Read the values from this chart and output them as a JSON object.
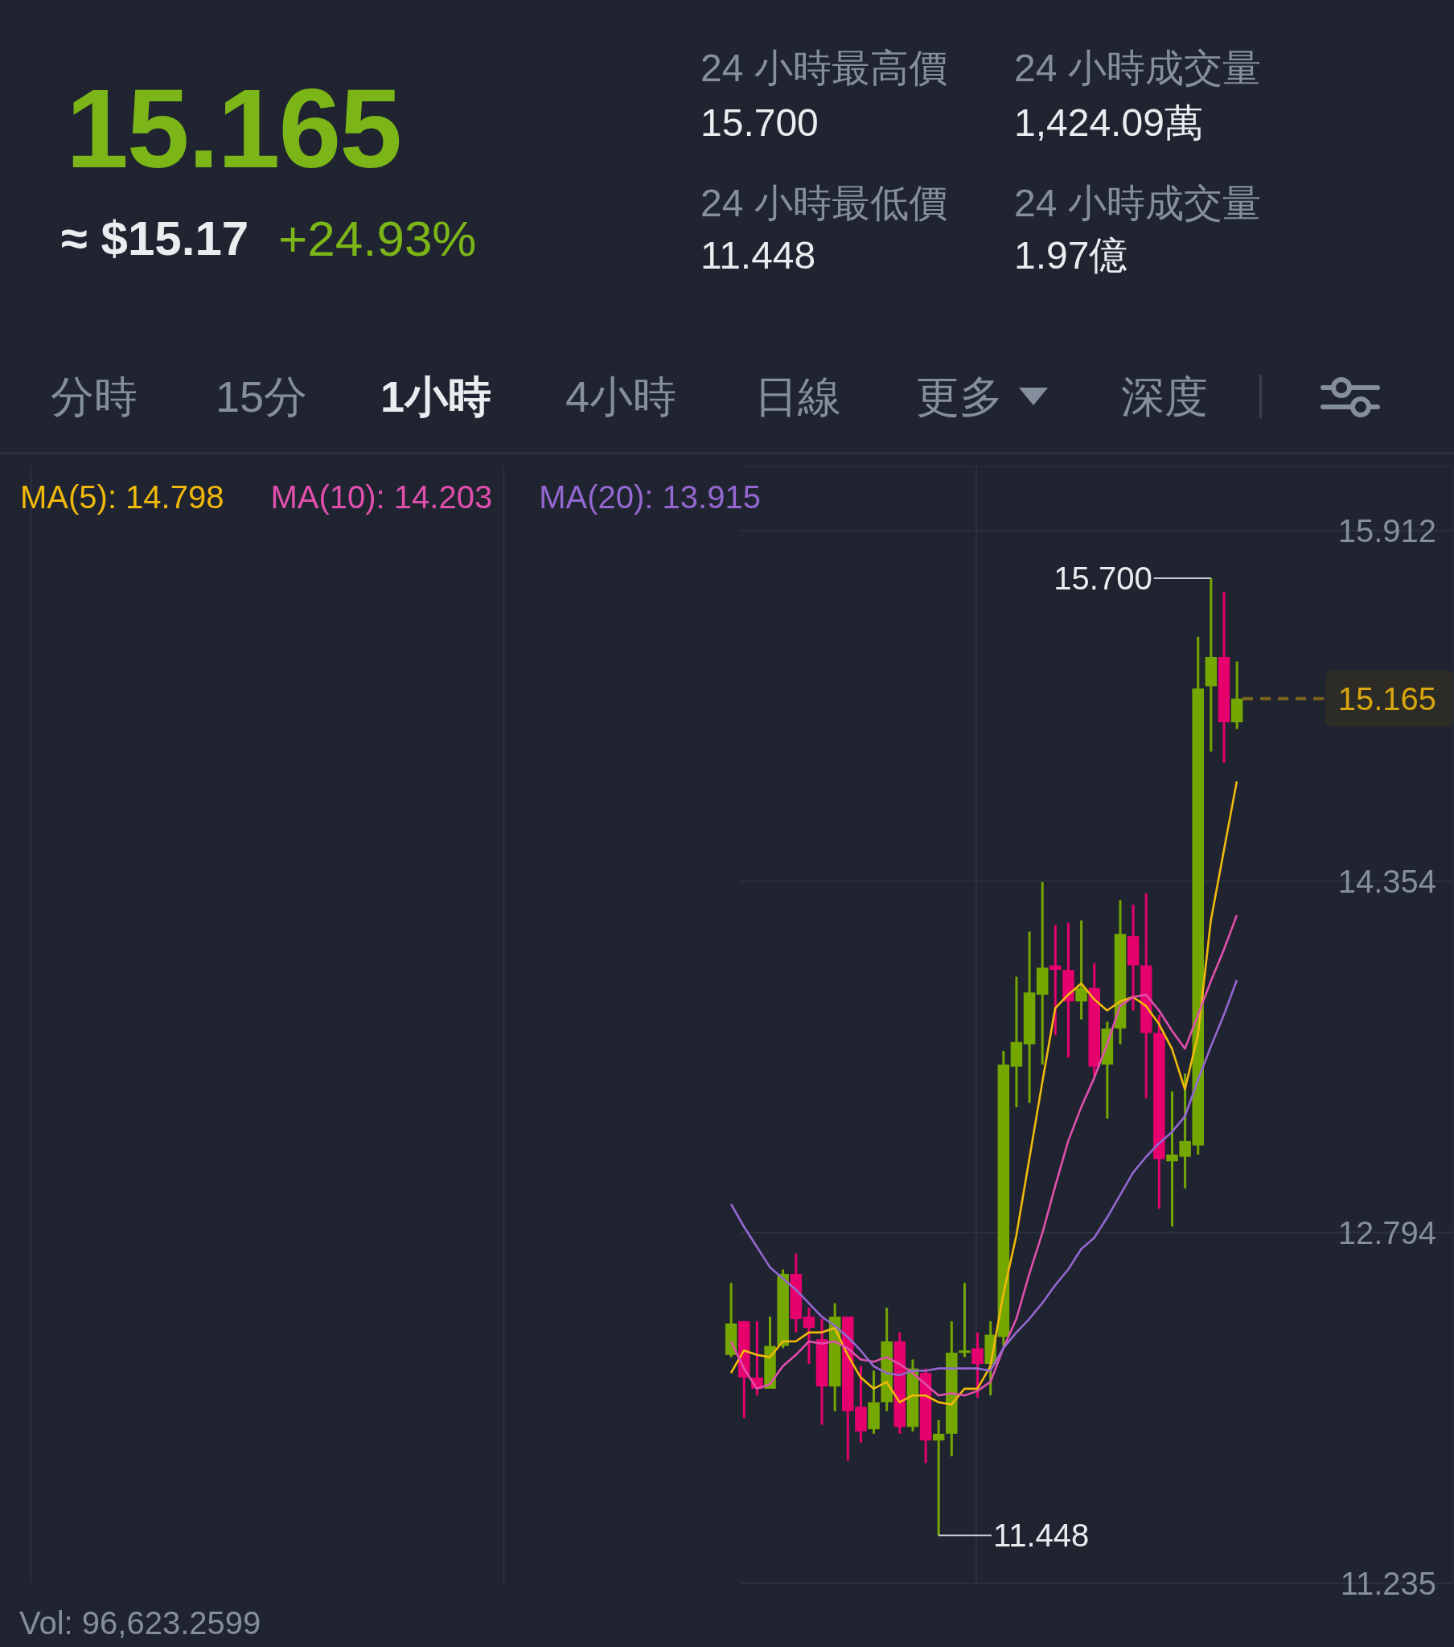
{
  "chart_data": {
    "type": "candlestick",
    "title": "15.165",
    "subtitle": "≈ $15.17",
    "annotations": [
      "+24.93%",
      "24 小時最高價",
      "15.700",
      "24 小時成交量",
      "1,424.09萬",
      "24 小時最低價",
      "11.448",
      "24 小時成交量",
      "1.97億",
      "分時",
      "15分",
      "1小時",
      "4小時",
      "日線",
      "更多",
      "深度",
      "Vol: 96,623.2599",
      "15.700",
      "11.448"
    ],
    "categories": [
      null,
      null,
      null,
      null,
      null,
      null,
      null,
      null,
      null,
      null,
      null,
      null,
      null,
      null,
      null,
      null,
      null,
      null,
      null,
      null,
      null,
      null,
      null,
      null,
      null,
      null,
      null,
      null,
      null,
      null,
      null,
      null,
      null,
      null,
      null,
      null,
      null,
      null,
      null,
      null
    ],
    "ohlc": [
      [
        12.25,
        12.57,
        12.24,
        12.39
      ],
      [
        12.4,
        12.4,
        11.97,
        12.15
      ],
      [
        12.15,
        12.4,
        12.07,
        12.1
      ],
      [
        12.1,
        12.42,
        12.1,
        12.29
      ],
      [
        12.29,
        12.63,
        12.28,
        12.61
      ],
      [
        12.61,
        12.7,
        12.35,
        12.41
      ],
      [
        12.42,
        12.46,
        12.21,
        12.37
      ],
      [
        12.32,
        12.41,
        11.94,
        12.11
      ],
      [
        12.11,
        12.48,
        12.0,
        12.42
      ],
      [
        12.42,
        12.42,
        11.78,
        12.0
      ],
      [
        12.02,
        12.2,
        11.86,
        11.91
      ],
      [
        11.92,
        12.18,
        11.9,
        12.04
      ],
      [
        12.04,
        12.46,
        12.0,
        12.31
      ],
      [
        12.31,
        12.35,
        11.9,
        11.93
      ],
      [
        11.93,
        12.23,
        11.91,
        12.19
      ],
      [
        12.17,
        12.19,
        11.77,
        11.87
      ],
      [
        11.87,
        11.96,
        11.448,
        11.9
      ],
      [
        11.9,
        12.4,
        11.8,
        12.26
      ],
      [
        12.26,
        12.57,
        12.24,
        12.27
      ],
      [
        12.28,
        12.35,
        12.06,
        12.21
      ],
      [
        12.21,
        12.4,
        12.07,
        12.34
      ],
      [
        12.33,
        13.6,
        12.29,
        13.54
      ],
      [
        13.53,
        13.93,
        13.35,
        13.64
      ],
      [
        13.63,
        14.13,
        13.37,
        13.86
      ],
      [
        13.85,
        14.35,
        13.54,
        13.97
      ],
      [
        13.98,
        14.16,
        13.67,
        13.96
      ],
      [
        13.96,
        14.17,
        13.57,
        13.82
      ],
      [
        13.82,
        14.18,
        13.74,
        13.88
      ],
      [
        13.88,
        13.99,
        13.49,
        13.53
      ],
      [
        13.54,
        13.73,
        13.3,
        13.7
      ],
      [
        13.7,
        14.27,
        13.63,
        14.12
      ],
      [
        14.11,
        14.25,
        13.78,
        13.98
      ],
      [
        13.98,
        14.3,
        13.39,
        13.68
      ],
      [
        13.68,
        13.76,
        12.9,
        13.12
      ],
      [
        13.11,
        13.42,
        12.82,
        13.14
      ],
      [
        13.13,
        13.5,
        12.99,
        13.2
      ],
      [
        13.18,
        15.44,
        13.14,
        15.21
      ],
      [
        15.22,
        15.7,
        14.93,
        15.35
      ],
      [
        15.35,
        15.64,
        14.88,
        15.06
      ],
      [
        15.06,
        15.33,
        15.03,
        15.165
      ]
    ],
    "colors": [
      "#74a700",
      "#e6006e",
      "#e6006e",
      "#74a700",
      "#74a700",
      "#e6006e",
      "#e6006e",
      "#e6006e",
      "#74a700",
      "#e6006e",
      "#e6006e",
      "#74a700",
      "#74a700",
      "#e6006e",
      "#74a700",
      "#e6006e",
      "#74a700",
      "#74a700",
      "#74a700",
      "#e6006e",
      "#74a700",
      "#74a700",
      "#74a700",
      "#74a700",
      "#74a700",
      "#e6006e",
      "#e6006e",
      "#74a700",
      "#e6006e",
      "#74a700",
      "#74a700",
      "#e6006e",
      "#e6006e",
      "#e6006e",
      "#74a700",
      "#74a700",
      "#74a700",
      "#74a700",
      "#e6006e",
      "#74a700"
    ],
    "series": [
      {
        "name": "MA(5): 14.798",
        "type": "line",
        "color": "#f0b90b",
        "values": [
          12.17,
          12.27,
          12.25,
          12.24,
          12.31,
          12.31,
          12.35,
          12.35,
          12.37,
          12.25,
          12.15,
          12.1,
          12.13,
          12.04,
          12.07,
          12.07,
          12.04,
          12.03,
          12.1,
          12.1,
          12.2,
          12.52,
          12.78,
          13.12,
          13.46,
          13.79,
          13.85,
          13.9,
          13.83,
          13.78,
          13.82,
          13.84,
          13.8,
          13.72,
          13.61,
          13.43,
          13.67,
          14.18,
          14.49,
          14.798
        ]
      },
      {
        "name": "MA(10): 14.203",
        "type": "line",
        "color": "#e14fad",
        "values": [
          12.31,
          12.19,
          12.1,
          12.12,
          12.2,
          12.25,
          12.31,
          12.3,
          12.31,
          12.28,
          12.23,
          12.22,
          12.24,
          12.21,
          12.17,
          12.12,
          12.07,
          12.08,
          12.07,
          12.09,
          12.13,
          12.28,
          12.41,
          12.61,
          12.79,
          13.0,
          13.2,
          13.35,
          13.48,
          13.63,
          13.8,
          13.84,
          13.85,
          13.78,
          13.69,
          13.61,
          13.76,
          13.91,
          14.05,
          14.203
        ]
      },
      {
        "name": "MA(20): 13.915",
        "type": "line",
        "color": "#9467d0",
        "values": [
          12.92,
          12.82,
          12.73,
          12.64,
          12.59,
          12.54,
          12.48,
          12.42,
          12.38,
          12.33,
          12.27,
          12.2,
          12.17,
          12.16,
          12.18,
          12.18,
          12.19,
          12.19,
          12.19,
          12.19,
          12.18,
          12.28,
          12.35,
          12.41,
          12.48,
          12.56,
          12.63,
          12.72,
          12.77,
          12.86,
          12.96,
          13.06,
          13.13,
          13.19,
          13.24,
          13.31,
          13.47,
          13.62,
          13.76,
          13.915
        ]
      }
    ],
    "ylim": [
      11.235,
      16.2
    ],
    "yticks": [
      11.235,
      12.794,
      14.354,
      15.912
    ],
    "grid": true,
    "legend": "top left",
    "marker": "none",
    "tick_labels": "y",
    "ref_lines": [
      {
        "axis": "y",
        "value": 15.165,
        "label": "15.165",
        "color": "#d9a60e",
        "line_style": "dashed"
      }
    ]
  }
}
